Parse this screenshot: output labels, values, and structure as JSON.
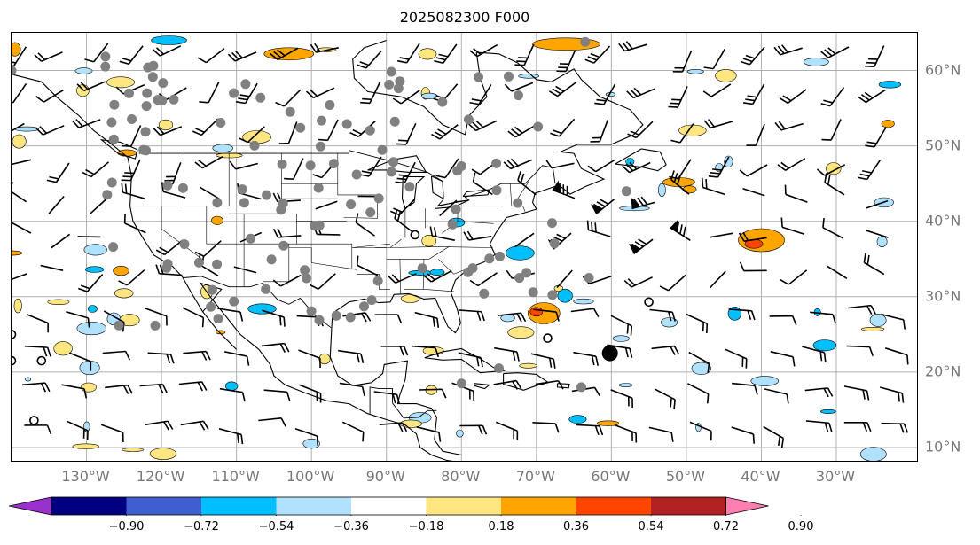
{
  "title": "2025082300 F000",
  "map": {
    "projection": "plate-carree",
    "extent": {
      "lon_min": -140,
      "lon_max": -19,
      "lat_min": 8,
      "lat_max": 65
    },
    "gridlines": true,
    "grid_color": "#b0b0b0",
    "lon_labels": [
      "130°W",
      "120°W",
      "110°W",
      "100°W",
      "90°W",
      "80°W",
      "70°W",
      "60°W",
      "50°W",
      "40°W",
      "30°W"
    ],
    "lon_values": [
      -130,
      -120,
      -110,
      -100,
      -90,
      -80,
      -70,
      -60,
      -50,
      -40,
      -30
    ],
    "lat_labels": [
      "60°N",
      "50°N",
      "40°N",
      "30°N",
      "20°N",
      "10°N"
    ],
    "lat_values": [
      60,
      50,
      40,
      30,
      20,
      10
    ],
    "layers": [
      "wind-barbs",
      "filled-contours",
      "coastlines",
      "state-borders",
      "station-markers"
    ]
  },
  "colorbar": {
    "orientation": "horizontal",
    "extend": "both",
    "tick_labels": [
      "−0.90",
      "−0.72",
      "−0.54",
      "−0.36",
      "−0.18",
      "0.18",
      "0.36",
      "0.54",
      "0.72",
      "0.90"
    ],
    "colors": [
      "#9932cc",
      "#000080",
      "#3f5fcf",
      "#00bfff",
      "#b0e2ff",
      "#ffffff",
      "#ffe680",
      "#ffa500",
      "#ff4500",
      "#b22222",
      "#ff80b0"
    ]
  }
}
